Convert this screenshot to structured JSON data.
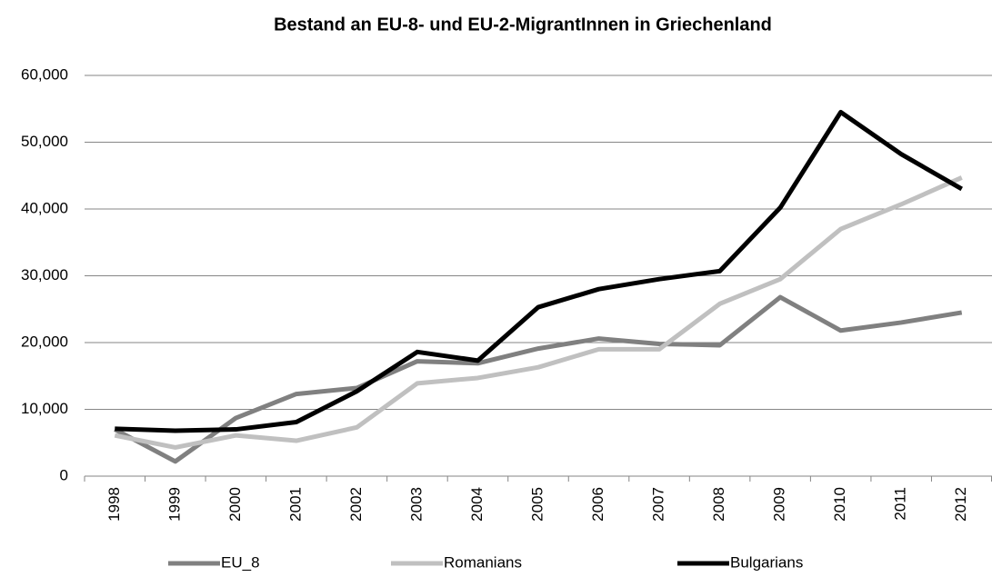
{
  "chart_data": {
    "type": "line",
    "title": "Bestand an EU-8- und EU-2-MigrantInnen in Griechenland",
    "categories": [
      "1998",
      "1999",
      "2000",
      "2001",
      "2002",
      "2003",
      "2004",
      "2005",
      "2006",
      "2007",
      "2008",
      "2009",
      "2010",
      "2011",
      "2012"
    ],
    "series": [
      {
        "name": "EU_8",
        "color": "#808080",
        "values": [
          7000,
          2200,
          8700,
          12300,
          13200,
          17200,
          16900,
          19100,
          20600,
          19800,
          19600,
          26800,
          21800,
          23000,
          24500
        ]
      },
      {
        "name": "Romanians",
        "color": "#c0c0c0",
        "values": [
          6100,
          4300,
          6100,
          5300,
          7300,
          13900,
          14700,
          16300,
          19000,
          19000,
          25800,
          29500,
          37000,
          40700,
          44700
        ]
      },
      {
        "name": "Bulgarians",
        "color": "#000000",
        "values": [
          7100,
          6800,
          7000,
          8100,
          12700,
          18600,
          17300,
          25300,
          28000,
          29500,
          30700,
          40200,
          54500,
          48200,
          43000
        ]
      }
    ],
    "ylim": [
      0,
      60000
    ],
    "yticks": [
      0,
      {
        "value": 10000,
        "label": "10,000"
      },
      {
        "value": 20000,
        "label": "20,000"
      },
      {
        "value": 30000,
        "label": "30,000"
      },
      {
        "value": 40000,
        "label": "40,000"
      },
      {
        "value": 50000,
        "label": "50,000"
      },
      {
        "value": 60000,
        "label": "60,000"
      }
    ],
    "grid": true,
    "legend": "bottom"
  }
}
